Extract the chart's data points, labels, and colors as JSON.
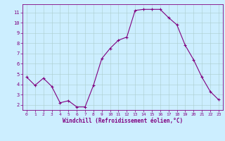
{
  "x": [
    0,
    1,
    2,
    3,
    4,
    5,
    6,
    7,
    8,
    9,
    10,
    11,
    12,
    13,
    14,
    15,
    16,
    17,
    18,
    19,
    20,
    21,
    22,
    23
  ],
  "y": [
    4.7,
    3.9,
    4.6,
    3.8,
    2.2,
    2.4,
    1.8,
    1.8,
    3.9,
    6.5,
    7.5,
    8.3,
    8.6,
    11.2,
    11.3,
    11.3,
    11.3,
    10.5,
    9.8,
    7.8,
    6.4,
    4.7,
    3.3,
    2.5
  ],
  "line_color": "#800080",
  "marker": "+",
  "marker_color": "#800080",
  "bg_color": "#cceeff",
  "grid_color": "#aacccc",
  "xlabel": "Windchill (Refroidissement éolien,°C)",
  "xlabel_color": "#800080",
  "tick_color": "#800080",
  "ylim": [
    1.5,
    11.8
  ],
  "yticks": [
    2,
    3,
    4,
    5,
    6,
    7,
    8,
    9,
    10,
    11
  ],
  "xticks": [
    0,
    1,
    2,
    3,
    4,
    5,
    6,
    7,
    8,
    9,
    10,
    11,
    12,
    13,
    14,
    15,
    16,
    17,
    18,
    19,
    20,
    21,
    22,
    23
  ],
  "border_color": "#800080",
  "figsize": [
    3.2,
    2.0
  ],
  "dpi": 100
}
